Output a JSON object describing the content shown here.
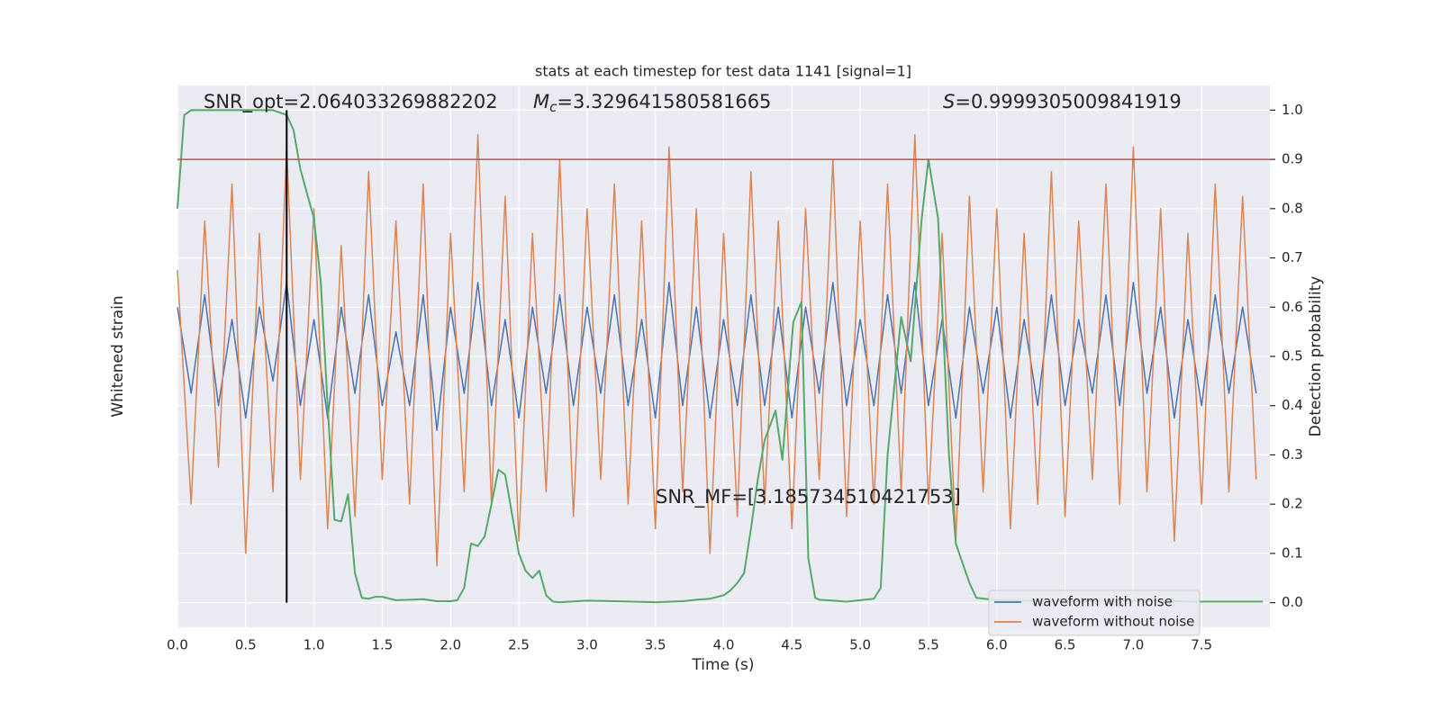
{
  "chart_data": {
    "type": "line",
    "title": "stats at each timestep for test data 1141 [signal=1]",
    "xlabel": "Time (s)",
    "ylabel": "Whitened strain",
    "y2label": "Detection probability",
    "xlim": [
      0,
      8
    ],
    "xticks": [
      {
        "value": 0,
        "label": "0.0"
      },
      {
        "value": 0.5,
        "label": "0.5"
      },
      {
        "value": 1,
        "label": "1.0"
      },
      {
        "value": 1.5,
        "label": "1.5"
      },
      {
        "value": 2,
        "label": "2.0"
      },
      {
        "value": 2.5,
        "label": "2.5"
      },
      {
        "value": 3,
        "label": "3.0"
      },
      {
        "value": 3.5,
        "label": "3.5"
      },
      {
        "value": 4,
        "label": "4.0"
      },
      {
        "value": 4.5,
        "label": "4.5"
      },
      {
        "value": 5,
        "label": "5.0"
      },
      {
        "value": 5.5,
        "label": "5.5"
      },
      {
        "value": 6,
        "label": "6.0"
      },
      {
        "value": 6.5,
        "label": "6.5"
      },
      {
        "value": 7,
        "label": "7.0"
      },
      {
        "value": 7.5,
        "label": "7.5"
      }
    ],
    "ylim": [
      -1.1,
      1.1
    ],
    "y2lim": [
      -0.05,
      1.05
    ],
    "y2ticks": [
      {
        "value": 0,
        "label": "0.0"
      },
      {
        "value": 0.1,
        "label": "0.1"
      },
      {
        "value": 0.2,
        "label": "0.2"
      },
      {
        "value": 0.3,
        "label": "0.3"
      },
      {
        "value": 0.4,
        "label": "0.4"
      },
      {
        "value": 0.5,
        "label": "0.5"
      },
      {
        "value": 0.6,
        "label": "0.6"
      },
      {
        "value": 0.7,
        "label": "0.7"
      },
      {
        "value": 0.8,
        "label": "0.8"
      },
      {
        "value": 0.9,
        "label": "0.9"
      },
      {
        "value": 1,
        "label": "1.0"
      }
    ],
    "grid": true,
    "legend": "lower right",
    "threshold": {
      "y": 0.9,
      "color": "#c44e52"
    },
    "marker": {
      "x": 0.8,
      "ymin": 0,
      "ymax": 1,
      "color": "#000000"
    },
    "annotations": [
      {
        "parts": [
          {
            "text": "SNR_opt=2.064033269882202"
          }
        ]
      },
      {
        "parts": [
          {
            "text": "M",
            "style": "italic"
          },
          {
            "text": "c",
            "style": "italic-sub"
          },
          {
            "text": "=3.329641580581665"
          }
        ]
      },
      {
        "parts": [
          {
            "text": "S",
            "style": "italic"
          },
          {
            "text": "=0.9999305009841919"
          }
        ]
      },
      {
        "parts": [
          {
            "text": "SNR_MF=[3.185734510421753]"
          }
        ]
      }
    ],
    "series": [
      {
        "name": "waveform with noise",
        "color": "#4c72b0",
        "x": [
          0,
          0.1,
          0.2,
          0.3,
          0.4,
          0.5,
          0.6,
          0.7,
          0.8,
          0.9,
          1,
          1.1,
          1.2,
          1.3,
          1.4,
          1.5,
          1.6,
          1.7,
          1.8,
          1.9,
          2,
          2.1,
          2.2,
          2.3,
          2.4,
          2.5,
          2.6,
          2.7,
          2.8,
          2.9,
          3,
          3.1,
          3.2,
          3.3,
          3.4,
          3.5,
          3.6,
          3.7,
          3.8,
          3.9,
          4,
          4.1,
          4.2,
          4.3,
          4.4,
          4.5,
          4.6,
          4.7,
          4.8,
          4.9,
          5,
          5.1,
          5.2,
          5.3,
          5.4,
          5.5,
          5.6,
          5.7,
          5.8,
          5.9,
          6,
          6.1,
          6.2,
          6.3,
          6.4,
          6.5,
          6.6,
          6.7,
          6.8,
          6.9,
          7,
          7.1,
          7.2,
          7.3,
          7.4,
          7.5,
          7.6,
          7.7,
          7.8,
          7.9
        ],
        "values": [
          0.2,
          -0.15,
          0.25,
          -0.2,
          0.15,
          -0.25,
          0.2,
          -0.1,
          0.3,
          -0.2,
          0.15,
          -0.25,
          0.2,
          -0.15,
          0.25,
          -0.2,
          0.1,
          -0.2,
          0.25,
          -0.3,
          0.2,
          -0.15,
          0.3,
          -0.2,
          0.15,
          -0.25,
          0.2,
          -0.15,
          0.25,
          -0.2,
          0.2,
          -0.15,
          0.25,
          -0.2,
          0.15,
          -0.25,
          0.3,
          -0.2,
          0.2,
          -0.25,
          0.15,
          -0.2,
          0.25,
          -0.2,
          0.2,
          -0.25,
          0.2,
          -0.15,
          0.3,
          -0.2,
          0.15,
          -0.2,
          0.25,
          -0.15,
          0.3,
          -0.2,
          0.15,
          -0.25,
          0.2,
          -0.15,
          0.2,
          -0.25,
          0.15,
          -0.2,
          0.25,
          -0.2,
          0.15,
          -0.15,
          0.25,
          -0.2,
          0.3,
          -0.15,
          0.2,
          -0.25,
          0.15,
          -0.2,
          0.25,
          -0.15,
          0.2,
          -0.15
        ]
      },
      {
        "name": "waveform without noise",
        "color": "#dd8452",
        "x": [
          0,
          0.1,
          0.2,
          0.3,
          0.4,
          0.5,
          0.6,
          0.7,
          0.8,
          0.9,
          1,
          1.1,
          1.2,
          1.3,
          1.4,
          1.5,
          1.6,
          1.7,
          1.8,
          1.9,
          2,
          2.1,
          2.2,
          2.3,
          2.4,
          2.5,
          2.6,
          2.7,
          2.8,
          2.9,
          3,
          3.1,
          3.2,
          3.3,
          3.4,
          3.5,
          3.6,
          3.7,
          3.8,
          3.9,
          4,
          4.1,
          4.2,
          4.3,
          4.4,
          4.5,
          4.6,
          4.7,
          4.8,
          4.9,
          5,
          5.1,
          5.2,
          5.3,
          5.4,
          5.5,
          5.6,
          5.7,
          5.8,
          5.9,
          6,
          6.1,
          6.2,
          6.3,
          6.4,
          6.5,
          6.6,
          6.7,
          6.8,
          6.9,
          7,
          7.1,
          7.2,
          7.3,
          7.4,
          7.5,
          7.6,
          7.7,
          7.8,
          7.9
        ],
        "values": [
          0.35,
          -0.6,
          0.55,
          -0.45,
          0.7,
          -0.8,
          0.5,
          -0.55,
          0.85,
          -0.5,
          0.6,
          -0.7,
          0.45,
          -0.65,
          0.75,
          -0.5,
          0.55,
          -0.6,
          0.7,
          -0.85,
          0.5,
          -0.55,
          0.9,
          -0.6,
          0.65,
          -0.75,
          0.5,
          -0.55,
          0.8,
          -0.65,
          0.6,
          -0.5,
          0.7,
          -0.6,
          0.55,
          -0.7,
          0.85,
          -0.55,
          0.6,
          -0.8,
          0.5,
          -0.65,
          0.75,
          -0.6,
          0.55,
          -0.7,
          0.6,
          -0.5,
          0.8,
          -0.65,
          0.55,
          -0.6,
          0.7,
          -0.55,
          0.9,
          -0.6,
          0.5,
          -0.75,
          0.65,
          -0.55,
          0.6,
          -0.7,
          0.5,
          -0.6,
          0.75,
          -0.65,
          0.55,
          -0.5,
          0.7,
          -0.6,
          0.85,
          -0.55,
          0.6,
          -0.75,
          0.5,
          -0.6,
          0.7,
          -0.55,
          0.65,
          -0.5
        ]
      },
      {
        "color": "#55a868",
        "axis": "y2",
        "x": [
          0,
          0.05,
          0.1,
          0.15,
          0.3,
          0.5,
          0.7,
          0.75,
          0.8,
          0.85,
          0.9,
          0.95,
          1.0,
          1.05,
          1.1,
          1.15,
          1.2,
          1.25,
          1.3,
          1.35,
          1.4,
          1.45,
          1.5,
          1.6,
          1.7,
          1.8,
          1.9,
          2.0,
          2.05,
          2.1,
          2.15,
          2.2,
          2.25,
          2.3,
          2.35,
          2.4,
          2.45,
          2.5,
          2.55,
          2.6,
          2.65,
          2.7,
          2.75,
          2.8,
          3.0,
          3.2,
          3.5,
          3.7,
          3.8,
          3.9,
          4.0,
          4.05,
          4.1,
          4.15,
          4.2,
          4.25,
          4.3,
          4.38,
          4.43,
          4.51,
          4.57,
          4.62,
          4.67,
          4.7,
          4.8,
          4.9,
          5.0,
          5.1,
          5.15,
          5.2,
          5.3,
          5.37,
          5.45,
          5.5,
          5.57,
          5.65,
          5.7,
          5.8,
          5.85,
          6.0,
          6.5,
          7.0,
          7.5,
          7.95
        ],
        "values": [
          0.8,
          0.99,
          1.0,
          1.0,
          1.0,
          1.0,
          1.0,
          0.995,
          0.99,
          0.96,
          0.88,
          0.83,
          0.78,
          0.65,
          0.4,
          0.168,
          0.165,
          0.22,
          0.06,
          0.01,
          0.008,
          0.012,
          0.012,
          0.005,
          0.006,
          0.007,
          0.003,
          0.003,
          0.005,
          0.03,
          0.12,
          0.115,
          0.135,
          0.2,
          0.27,
          0.26,
          0.18,
          0.1,
          0.065,
          0.05,
          0.065,
          0.015,
          0.002,
          0.001,
          0.004,
          0.003,
          0.001,
          0.003,
          0.006,
          0.008,
          0.015,
          0.025,
          0.04,
          0.06,
          0.15,
          0.25,
          0.33,
          0.39,
          0.29,
          0.57,
          0.61,
          0.09,
          0.01,
          0.006,
          0.004,
          0.002,
          0.005,
          0.008,
          0.03,
          0.3,
          0.58,
          0.49,
          0.78,
          0.9,
          0.78,
          0.3,
          0.12,
          0.04,
          0.01,
          0.005,
          0.003,
          0.004,
          0.002,
          0.002
        ]
      }
    ]
  }
}
